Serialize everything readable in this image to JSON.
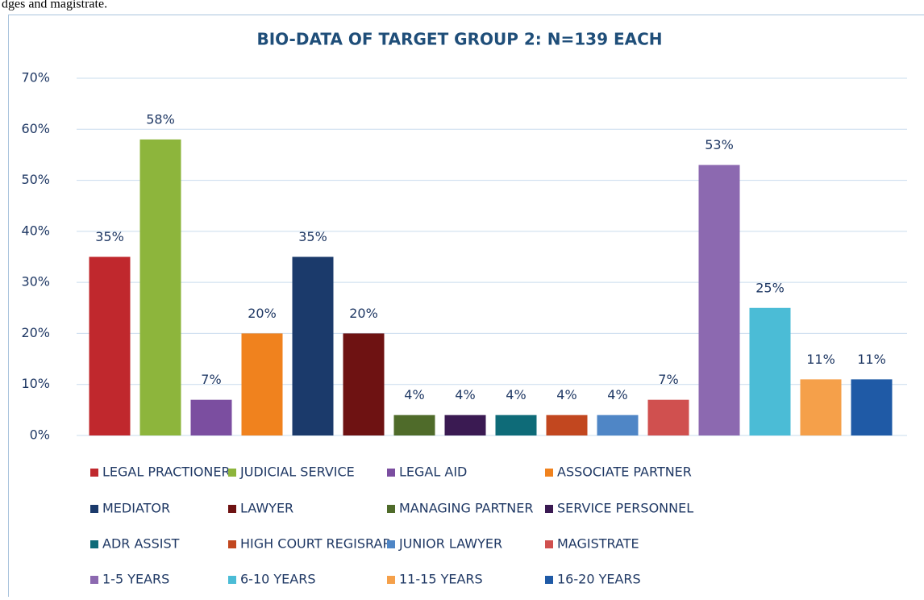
{
  "page_text": "dges and magistrate.",
  "chart_data": {
    "type": "bar",
    "title": "BIO-DATA OF TARGET GROUP 2: N=139 EACH",
    "categories": [
      "LEGAL PRACTIONER",
      "JUDICIAL SERVICE",
      "LEGAL AID",
      "ASSOCIATE PARTNER",
      "MEDIATOR",
      "LAWYER",
      "MANAGING PARTNER",
      "SERVICE PERSONNEL",
      "ADR ASSIST",
      "HIGH COURT REGISRAR",
      "JUNIOR LAWYER",
      "MAGISTRATE",
      "1-5 YEARS",
      "6-10 YEARS",
      "11-15 YEARS",
      "16-20 YEARS"
    ],
    "values": [
      35,
      58,
      7,
      20,
      35,
      20,
      4,
      4,
      4,
      4,
      4,
      7,
      53,
      25,
      11,
      11
    ],
    "value_labels": [
      "35%",
      "58%",
      "7%",
      "20%",
      "35%",
      "20%",
      "4%",
      "4%",
      "4%",
      "4%",
      "4%",
      "7%",
      "53%",
      "25%",
      "11%",
      "11%"
    ],
    "colors": [
      "#c0282d",
      "#8db53c",
      "#7b4ea0",
      "#f0821e",
      "#1b3a6b",
      "#6e1212",
      "#4f6b2a",
      "#3a1a52",
      "#0e6b78",
      "#c2471f",
      "#4f86c6",
      "#d0504f",
      "#8c69b0",
      "#4bbcd6",
      "#f5a04a",
      "#1f5aa6"
    ],
    "ylim": [
      0,
      70
    ],
    "yticks": [
      {
        "value": 0,
        "label": "0%"
      },
      {
        "value": 10,
        "label": "10%"
      },
      {
        "value": 20,
        "label": "20%"
      },
      {
        "value": 30,
        "label": "30%"
      },
      {
        "value": 40,
        "label": "40%"
      },
      {
        "value": 50,
        "label": "50%"
      },
      {
        "value": 60,
        "label": "60%"
      },
      {
        "value": 70,
        "label": "70%"
      }
    ],
    "grid": true,
    "legend": "bottom"
  }
}
